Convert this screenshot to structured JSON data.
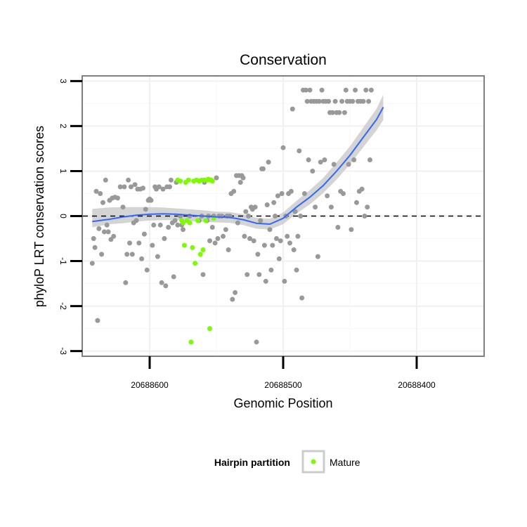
{
  "chart_data": {
    "type": "scatter",
    "title": "Conservation",
    "xlabel": "Genomic Position",
    "ylabel": "phyloP LRT conservation scores",
    "x_reversed": true,
    "xlim": [
      20688650,
      20688350
    ],
    "ylim": [
      -3.1,
      3.1
    ],
    "x_ticks": [
      20688600,
      20688500,
      20688400
    ],
    "x_tick_labels": [
      "20688600",
      "20688500",
      "20688400"
    ],
    "y_ticks": [
      -3,
      -2,
      -1,
      0,
      1,
      2,
      3
    ],
    "y_tick_labels": [
      "-3",
      "-2",
      "-1",
      "0",
      "1",
      "2",
      "3"
    ],
    "grid": true,
    "reference_line": {
      "y": 0,
      "style": "dashed",
      "color": "#000000"
    },
    "legend": {
      "title": "Hairpin partition",
      "position": "bottom",
      "items": [
        {
          "label": "Mature",
          "color": "#7cfc00"
        }
      ]
    },
    "series": [
      {
        "color": "#999999",
        "points": [
          [
            20688643,
            -1.05
          ],
          [
            20688642,
            -0.5
          ],
          [
            20688641,
            -0.7
          ],
          [
            20688640,
            0.55
          ],
          [
            20688639,
            -2.32
          ],
          [
            20688638,
            -0.28
          ],
          [
            20688637,
            0.5
          ],
          [
            20688636,
            -0.85
          ],
          [
            20688635,
            0.3
          ],
          [
            20688634,
            -0.35
          ],
          [
            20688633,
            0.8
          ],
          [
            20688632,
            -0.2
          ],
          [
            20688631,
            -0.35
          ],
          [
            20688630,
            0.35
          ],
          [
            20688629,
            -0.52
          ],
          [
            20688628,
            0.4
          ],
          [
            20688627,
            -0.45
          ],
          [
            20688626,
            0.42
          ],
          [
            20688624,
            0.4
          ],
          [
            20688622,
            0.65
          ],
          [
            20688620,
            0.2
          ],
          [
            20688619,
            0.65
          ],
          [
            20688618,
            -1.48
          ],
          [
            20688617,
            -0.85
          ],
          [
            20688616,
            0.8
          ],
          [
            20688615,
            -0.6
          ],
          [
            20688614,
            0.65
          ],
          [
            20688613,
            -0.85
          ],
          [
            20688612,
            -0.15
          ],
          [
            20688611,
            0.7
          ],
          [
            20688610,
            -0.1
          ],
          [
            20688609,
            0.6
          ],
          [
            20688608,
            -0.6
          ],
          [
            20688607,
            0.6
          ],
          [
            20688606,
            -0.95
          ],
          [
            20688605,
            0.62
          ],
          [
            20688604,
            -0.4
          ],
          [
            20688603,
            0.15
          ],
          [
            20688602,
            -1.2
          ],
          [
            20688601,
            0.35
          ],
          [
            20688600,
            0.38
          ],
          [
            20688599,
            0.35
          ],
          [
            20688598,
            -0.65
          ],
          [
            20688597,
            -0.2
          ],
          [
            20688596,
            0.65
          ],
          [
            20688595,
            0.6
          ],
          [
            20688594,
            -0.9
          ],
          [
            20688593,
            0.65
          ],
          [
            20688592,
            -0.2
          ],
          [
            20688591,
            -1.48
          ],
          [
            20688590,
            0.6
          ],
          [
            20688589,
            -0.5
          ],
          [
            20688588,
            -1.55
          ],
          [
            20688587,
            0.65
          ],
          [
            20688586,
            -0.25
          ],
          [
            20688585,
            0.65
          ],
          [
            20688584,
            0.8
          ],
          [
            20688583,
            -0.15
          ],
          [
            20688582,
            -1.35
          ],
          [
            20688581,
            -0.1
          ],
          [
            20688580,
            0.75
          ],
          [
            20688579,
            -0.2
          ],
          [
            20688577,
            0.0
          ],
          [
            20688576,
            -0.2
          ],
          [
            20688575,
            -0.3
          ],
          [
            20688570,
            0.0
          ],
          [
            20688563,
            -0.1
          ],
          [
            20688561,
            0.0
          ],
          [
            20688560,
            -1.3
          ],
          [
            20688559,
            0.75
          ],
          [
            20688557,
            -0.1
          ],
          [
            20688556,
            0.0
          ],
          [
            20688555,
            -0.55
          ],
          [
            20688554,
            0.8
          ],
          [
            20688553,
            -0.25
          ],
          [
            20688552,
            0.0
          ],
          [
            20688551,
            -0.6
          ],
          [
            20688550,
            0.85
          ],
          [
            20688549,
            -0.5
          ],
          [
            20688548,
            0.0
          ],
          [
            20688546,
            0.0
          ],
          [
            20688545,
            -0.45
          ],
          [
            20688543,
            -0.3
          ],
          [
            20688542,
            0.0
          ],
          [
            20688541,
            -0.75
          ],
          [
            20688540,
            0.0
          ],
          [
            20688539,
            0.5
          ],
          [
            20688538,
            -1.85
          ],
          [
            20688537,
            0.55
          ],
          [
            20688536,
            -1.7
          ],
          [
            20688535,
            0.9
          ],
          [
            20688534,
            -0.15
          ],
          [
            20688533,
            0.9
          ],
          [
            20688532,
            0.75
          ],
          [
            20688531,
            0.9
          ],
          [
            20688530,
            0.85
          ],
          [
            20688529,
            -0.45
          ],
          [
            20688528,
            0.1
          ],
          [
            20688527,
            -1.3
          ],
          [
            20688526,
            0.0
          ],
          [
            20688525,
            -0.5
          ],
          [
            20688524,
            0.2
          ],
          [
            20688523,
            0.15
          ],
          [
            20688522,
            -0.55
          ],
          [
            20688521,
            0.2
          ],
          [
            20688520,
            -2.8
          ],
          [
            20688519,
            -0.85
          ],
          [
            20688518,
            -1.3
          ],
          [
            20688517,
            -0.1
          ],
          [
            20688516,
            1.05
          ],
          [
            20688515,
            1.05
          ],
          [
            20688514,
            -0.65
          ],
          [
            20688513,
            -1.45
          ],
          [
            20688512,
            0.25
          ],
          [
            20688511,
            1.2
          ],
          [
            20688510,
            -0.3
          ],
          [
            20688509,
            -1.2
          ],
          [
            20688508,
            -0.65
          ],
          [
            20688507,
            0.3
          ],
          [
            20688506,
            0.0
          ],
          [
            20688505,
            -0.5
          ],
          [
            20688504,
            0.45
          ],
          [
            20688503,
            -0.95
          ],
          [
            20688502,
            -0.55
          ],
          [
            20688501,
            0.5
          ],
          [
            20688500,
            1.52
          ],
          [
            20688499,
            -1.45
          ],
          [
            20688498,
            0.0
          ],
          [
            20688497,
            -0.45
          ],
          [
            20688496,
            0.5
          ],
          [
            20688495,
            -0.6
          ],
          [
            20688494,
            0.55
          ],
          [
            20688493,
            2.38
          ],
          [
            20688492,
            -0.75
          ],
          [
            20688491,
            0.1
          ],
          [
            20688490,
            -1.2
          ],
          [
            20688489,
            -0.45
          ],
          [
            20688488,
            1.45
          ],
          [
            20688487,
            0.0
          ],
          [
            20688486,
            -1.82
          ],
          [
            20688485,
            2.8
          ],
          [
            20688484,
            0.5
          ],
          [
            20688483,
            2.8
          ],
          [
            20688482,
            2.55
          ],
          [
            20688481,
            1.25
          ],
          [
            20688480,
            2.8
          ],
          [
            20688479,
            2.55
          ],
          [
            20688478,
            1.0
          ],
          [
            20688477,
            2.55
          ],
          [
            20688476,
            0.2
          ],
          [
            20688475,
            2.55
          ],
          [
            20688474,
            -0.9
          ],
          [
            20688473,
            2.55
          ],
          [
            20688472,
            1.2
          ],
          [
            20688471,
            2.8
          ],
          [
            20688470,
            2.55
          ],
          [
            20688469,
            1.25
          ],
          [
            20688468,
            2.55
          ],
          [
            20688467,
            0.45
          ],
          [
            20688466,
            2.55
          ],
          [
            20688465,
            2.3
          ],
          [
            20688464,
            0.2
          ],
          [
            20688463,
            2.3
          ],
          [
            20688462,
            1.15
          ],
          [
            20688461,
            2.55
          ],
          [
            20688460,
            2.3
          ],
          [
            20688459,
            -0.25
          ],
          [
            20688458,
            2.3
          ],
          [
            20688457,
            0.55
          ],
          [
            20688456,
            2.55
          ],
          [
            20688455,
            0.5
          ],
          [
            20688454,
            2.3
          ],
          [
            20688453,
            2.8
          ],
          [
            20688452,
            2.55
          ],
          [
            20688451,
            1.15
          ],
          [
            20688450,
            2.55
          ],
          [
            20688449,
            -0.3
          ],
          [
            20688448,
            2.55
          ],
          [
            20688447,
            1.25
          ],
          [
            20688446,
            2.8
          ],
          [
            20688445,
            0.3
          ],
          [
            20688444,
            2.55
          ],
          [
            20688443,
            0.55
          ],
          [
            20688442,
            2.55
          ],
          [
            20688441,
            0.6
          ],
          [
            20688440,
            2.55
          ],
          [
            20688439,
            0.0
          ],
          [
            20688438,
            2.8
          ],
          [
            20688437,
            0.2
          ],
          [
            20688436,
            2.55
          ],
          [
            20688435,
            1.25
          ],
          [
            20688434,
            2.8
          ]
        ]
      },
      {
        "name": "Mature",
        "color": "#7cfc00",
        "points": [
          [
            20688579,
            0.8
          ],
          [
            20688577,
            0.78
          ],
          [
            20688576,
            -0.1
          ],
          [
            20688575,
            -0.15
          ],
          [
            20688574,
            -0.65
          ],
          [
            20688573,
            0.75
          ],
          [
            20688572,
            -0.1
          ],
          [
            20688571,
            0.8
          ],
          [
            20688570,
            -0.15
          ],
          [
            20688569,
            -2.8
          ],
          [
            20688568,
            -0.7
          ],
          [
            20688567,
            0.78
          ],
          [
            20688566,
            -1.05
          ],
          [
            20688565,
            0.8
          ],
          [
            20688564,
            -0.1
          ],
          [
            20688563,
            0.78
          ],
          [
            20688562,
            -0.85
          ],
          [
            20688561,
            0.8
          ],
          [
            20688560,
            -0.75
          ],
          [
            20688559,
            0.8
          ],
          [
            20688558,
            -0.1
          ],
          [
            20688557,
            0.8
          ],
          [
            20688556,
            0.82
          ],
          [
            20688555,
            -2.5
          ],
          [
            20688554,
            0.8
          ],
          [
            20688553,
            0.78
          ],
          [
            20688552,
            -0.05
          ]
        ]
      }
    ],
    "smooth": {
      "color": "#3366ff",
      "points": [
        [
          20688643,
          -0.12
        ],
        [
          20688630,
          -0.07
        ],
        [
          20688620,
          -0.02
        ],
        [
          20688610,
          0.02
        ],
        [
          20688600,
          0.04
        ],
        [
          20688590,
          0.05
        ],
        [
          20688580,
          0.04
        ],
        [
          20688570,
          0.02
        ],
        [
          20688560,
          0.0
        ],
        [
          20688550,
          -0.02
        ],
        [
          20688540,
          -0.03
        ],
        [
          20688530,
          -0.08
        ],
        [
          20688520,
          -0.16
        ],
        [
          20688510,
          -0.18
        ],
        [
          20688500,
          -0.05
        ],
        [
          20688490,
          0.2
        ],
        [
          20688480,
          0.42
        ],
        [
          20688470,
          0.68
        ],
        [
          20688460,
          1.0
        ],
        [
          20688450,
          1.35
        ],
        [
          20688440,
          1.75
        ],
        [
          20688430,
          2.15
        ],
        [
          20688425,
          2.42
        ]
      ],
      "band": [
        [
          0.28,
          0.13
        ],
        [
          0.26,
          0.11
        ],
        [
          0.22,
          0.14
        ],
        [
          0.18,
          0.14
        ],
        [
          0.16,
          0.14
        ],
        [
          0.14,
          0.14
        ],
        [
          0.13,
          0.13
        ],
        [
          0.13,
          0.13
        ],
        [
          0.13,
          0.13
        ],
        [
          0.12,
          0.12
        ],
        [
          0.12,
          0.12
        ],
        [
          0.12,
          0.12
        ],
        [
          0.12,
          0.12
        ],
        [
          0.12,
          0.12
        ],
        [
          0.13,
          0.13
        ],
        [
          0.14,
          0.14
        ],
        [
          0.16,
          0.16
        ],
        [
          0.17,
          0.17
        ],
        [
          0.19,
          0.19
        ],
        [
          0.2,
          0.2
        ],
        [
          0.22,
          0.22
        ],
        [
          0.24,
          0.24
        ],
        [
          0.28,
          0.28
        ]
      ]
    }
  }
}
